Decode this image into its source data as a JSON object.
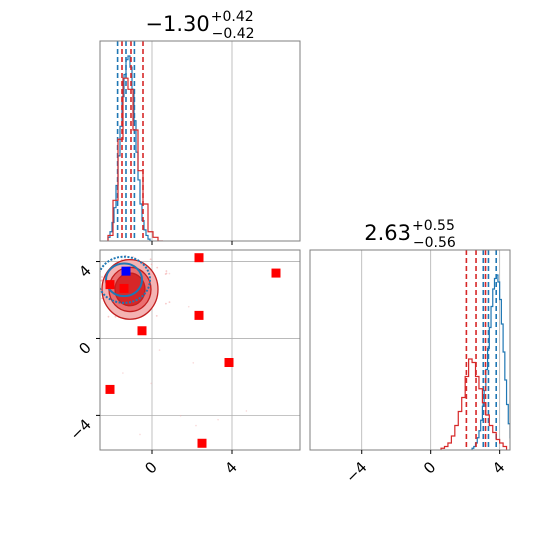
{
  "chart_data": {
    "type": "corner",
    "panels": [
      {
        "id": "hist_param0",
        "type": "histogram",
        "title": {
          "base": "−1.30",
          "sup": "+0.42",
          "sub": "−0.42"
        },
        "xlim": [
          -2.6,
          7.4
        ],
        "grid": true,
        "series": [
          {
            "name": "blue",
            "color": "#1f77b4",
            "bins_start": -2.2,
            "bin_width": 0.1,
            "heights": [
              0.02,
              0.05,
              0.1,
              0.18,
              0.3,
              0.46,
              0.62,
              0.78,
              0.9,
              0.98,
              1.0,
              0.94,
              0.82,
              0.65,
              0.48,
              0.33,
              0.2,
              0.11,
              0.06,
              0.03,
              0.01,
              0.0
            ],
            "quantiles": [
              -1.72,
              -1.3,
              -0.88
            ]
          },
          {
            "name": "red",
            "color": "#d62728",
            "bins_start": -2.2,
            "bin_width": 0.25,
            "heights": [
              0.03,
              0.22,
              0.55,
              0.88,
              0.82,
              0.6,
              0.38,
              0.2,
              0.05,
              0.02,
              0.0
            ],
            "quantiles": [
              -1.5,
              -1.05,
              -0.45
            ]
          }
        ]
      },
      {
        "id": "scatter_param0_param1",
        "type": "scatter",
        "xlim": [
          -2.6,
          7.4
        ],
        "ylim": [
          -5.8,
          4.6
        ],
        "grid": true,
        "x_ticks": [
          0,
          4
        ],
        "x_tick_labels": [
          "0",
          "4"
        ],
        "y_ticks": [
          -4,
          0,
          4
        ],
        "y_tick_labels": [
          "−4",
          "0",
          "4"
        ],
        "red_contours": {
          "center": [
            -1.1,
            2.55
          ],
          "radii_x": [
            1.4,
            1.05,
            0.75
          ],
          "radii_y": [
            1.55,
            1.15,
            0.85
          ]
        },
        "blue_contours": {
          "center": [
            -1.4,
            3.05
          ],
          "radii_x": [
            1.3,
            0.9
          ],
          "radii_y": [
            1.2,
            0.85
          ]
        },
        "red_markers": [
          [
            -2.1,
            2.8
          ],
          [
            -2.1,
            -2.65
          ],
          [
            -0.5,
            0.4
          ],
          [
            2.35,
            4.2
          ],
          [
            2.35,
            1.2
          ],
          [
            6.2,
            3.4
          ],
          [
            3.85,
            -1.25
          ],
          [
            2.5,
            -5.45
          ],
          [
            -1.4,
            2.6
          ]
        ],
        "blue_marker": [
          -1.3,
          3.5
        ]
      },
      {
        "id": "hist_param1",
        "type": "histogram",
        "title": {
          "base": "2.63",
          "sup": "+0.55",
          "sub": "−0.56"
        },
        "xlim": [
          -7.0,
          4.6
        ],
        "grid": true,
        "x_ticks": [
          -4,
          0,
          4
        ],
        "x_tick_labels": [
          "−4",
          "0",
          "4"
        ],
        "series": [
          {
            "name": "blue",
            "color": "#1f77b4",
            "bins_start": 2.4,
            "bin_width": 0.1,
            "heights": [
              0.01,
              0.02,
              0.04,
              0.07,
              0.11,
              0.17,
              0.25,
              0.34,
              0.46,
              0.58,
              0.7,
              0.82,
              0.92,
              0.98,
              1.0,
              0.96,
              0.86,
              0.72,
              0.56,
              0.4,
              0.26,
              0.15,
              0.07,
              0.02
            ],
            "quantiles": [
              3.05,
              3.35,
              3.8
            ]
          },
          {
            "name": "red",
            "color": "#d62728",
            "bins_start": 0.6,
            "bin_width": 0.2,
            "heights": [
              0.01,
              0.02,
              0.04,
              0.08,
              0.14,
              0.22,
              0.3,
              0.42,
              0.52,
              0.5,
              0.42,
              0.35,
              0.27,
              0.2,
              0.14,
              0.1,
              0.06,
              0.04,
              0.02
            ],
            "quantiles": [
              2.07,
              2.63,
              3.18
            ]
          }
        ]
      }
    ]
  }
}
